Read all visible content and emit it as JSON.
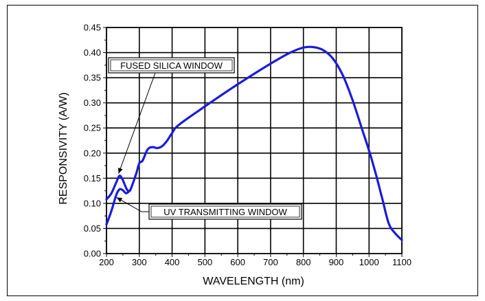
{
  "chart_data": {
    "type": "line",
    "title": "",
    "xlabel": "WAVELENGTH (nm)",
    "ylabel": "RESPONSIVITY (A/W)",
    "xlim": [
      200,
      1100
    ],
    "ylim": [
      0,
      0.45
    ],
    "x_ticks": [
      200,
      300,
      400,
      500,
      600,
      700,
      800,
      900,
      1000,
      1100
    ],
    "y_ticks": [
      "0.00",
      "0.05",
      "0.10",
      "0.15",
      "0.20",
      "0.25",
      "0.30",
      "0.35",
      "0.40",
      "0.45"
    ],
    "grid": true,
    "line_color": "#1a1adc",
    "series": [
      {
        "name": "FUSED SILICA WINDOW",
        "x": [
          200,
          215,
          230,
          240,
          250,
          262,
          272,
          290,
          300,
          310,
          325,
          340,
          355,
          370,
          385,
          400,
          420,
          500,
          600,
          700,
          760,
          800,
          830,
          860,
          890,
          920,
          950,
          980,
          1000,
          1020,
          1040,
          1060,
          1080,
          1100
        ],
        "y": [
          0.108,
          0.12,
          0.142,
          0.155,
          0.146,
          0.128,
          0.126,
          0.158,
          0.18,
          0.185,
          0.207,
          0.212,
          0.21,
          0.214,
          0.225,
          0.24,
          0.256,
          0.293,
          0.337,
          0.378,
          0.4,
          0.41,
          0.411,
          0.405,
          0.388,
          0.355,
          0.305,
          0.245,
          0.205,
          0.16,
          0.11,
          0.06,
          0.04,
          0.027
        ]
      },
      {
        "name": "UV TRANSMITTING WINDOW",
        "x": [
          200,
          215,
          230,
          240,
          250,
          260,
          272
        ],
        "y": [
          0.058,
          0.085,
          0.117,
          0.128,
          0.126,
          0.12,
          0.126
        ]
      }
    ],
    "annotations": [
      {
        "text": "FUSED SILICA WINDOW",
        "x": 243,
        "y": 0.155
      },
      {
        "text": "UV TRANSMITTING WINDOW",
        "x": 243,
        "y": 0.12
      }
    ]
  }
}
